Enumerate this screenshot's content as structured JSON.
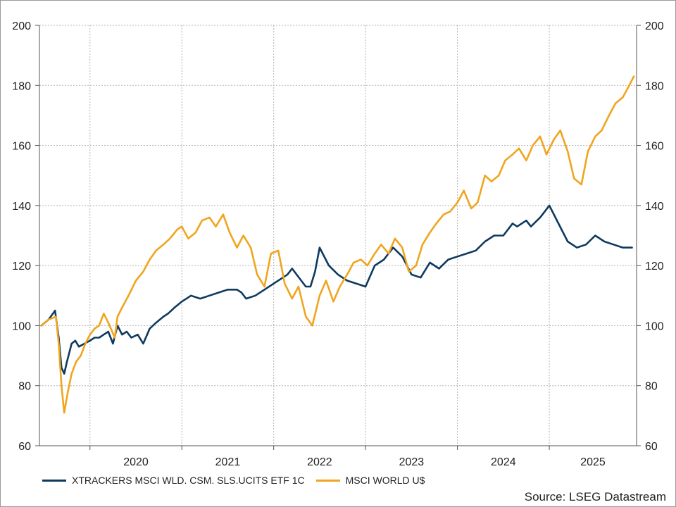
{
  "chart_data": {
    "type": "line",
    "y_ticks": [
      60,
      80,
      100,
      120,
      140,
      160,
      180,
      200
    ],
    "ylim": [
      60,
      200
    ],
    "x_year_labels": [
      "2020",
      "2021",
      "2022",
      "2023",
      "2024",
      "2025"
    ],
    "xlim": [
      2019.45,
      2025.95
    ],
    "grid": true,
    "legend_position": "bottom-left",
    "series": [
      {
        "name": "XTRACKERS MSCI WLD. CSM. SLS.UCITS ETF 1C",
        "color": "#0e3a5f",
        "x": [
          2019.47,
          2019.55,
          2019.62,
          2019.66,
          2019.69,
          2019.72,
          2019.75,
          2019.8,
          2019.84,
          2019.88,
          2019.94,
          2020.0,
          2020.05,
          2020.1,
          2020.15,
          2020.2,
          2020.25,
          2020.3,
          2020.35,
          2020.4,
          2020.45,
          2020.52,
          2020.58,
          2020.65,
          2020.72,
          2020.8,
          2020.85,
          2020.92,
          2021.0,
          2021.1,
          2021.2,
          2021.3,
          2021.4,
          2021.5,
          2021.6,
          2021.65,
          2021.7,
          2021.8,
          2021.9,
          2022.0,
          2022.1,
          2022.15,
          2022.2,
          2022.3,
          2022.35,
          2022.4,
          2022.45,
          2022.5,
          2022.6,
          2022.7,
          2022.8,
          2022.9,
          2023.0,
          2023.1,
          2023.2,
          2023.3,
          2023.4,
          2023.5,
          2023.6,
          2023.7,
          2023.8,
          2023.9,
          2024.0,
          2024.1,
          2024.2,
          2024.3,
          2024.4,
          2024.5,
          2024.6,
          2024.65,
          2024.7,
          2024.75,
          2024.8,
          2024.9,
          2025.0,
          2025.1,
          2025.2,
          2025.3,
          2025.4,
          2025.5,
          2025.6,
          2025.7,
          2025.8,
          2025.9
        ],
        "values": [
          100,
          102,
          105,
          96,
          86,
          84,
          88,
          94,
          95,
          93,
          94,
          95,
          96,
          96,
          97,
          98,
          94,
          100,
          97,
          98,
          96,
          97,
          94,
          99,
          101,
          103,
          104,
          106,
          108,
          110,
          109,
          110,
          111,
          112,
          112,
          111,
          109,
          110,
          112,
          114,
          116,
          117,
          119,
          115,
          113,
          113,
          118,
          126,
          120,
          117,
          115,
          114,
          113,
          120,
          122,
          126,
          123,
          117,
          116,
          121,
          119,
          122,
          123,
          124,
          125,
          128,
          130,
          130,
          134,
          133,
          134,
          135,
          133,
          136,
          140,
          134,
          128,
          126,
          127,
          130,
          128,
          127,
          126,
          126
        ],
        "x2": [
          2019.47,
          2019.55,
          2019.63,
          2019.66,
          2019.69,
          2019.72,
          2019.76,
          2019.8,
          2019.85,
          2019.9,
          2019.95,
          2020.0,
          2020.05,
          2020.1,
          2020.15,
          2020.2,
          2020.27,
          2020.3,
          2020.35,
          2020.42,
          2020.5,
          2020.58,
          2020.65,
          2020.72,
          2020.8,
          2020.87,
          2020.95,
          2021.0,
          2021.07,
          2021.15,
          2021.22,
          2021.3,
          2021.37,
          2021.45,
          2021.52,
          2021.6,
          2021.67,
          2021.75,
          2021.82,
          2021.9,
          2021.97,
          2022.05,
          2022.12,
          2022.2,
          2022.27,
          2022.35,
          2022.42,
          2022.5,
          2022.57,
          2022.65,
          2022.72,
          2022.8,
          2022.87,
          2022.95,
          2023.02,
          2023.1,
          2023.17,
          2023.25,
          2023.32,
          2023.4,
          2023.47,
          2023.55,
          2023.62,
          2023.7,
          2023.77,
          2023.85,
          2023.92,
          2024.0,
          2024.07,
          2024.15,
          2024.22,
          2024.3,
          2024.37,
          2024.45,
          2024.52,
          2024.6,
          2024.67,
          2024.75,
          2024.82,
          2024.9,
          2024.97,
          2025.05,
          2025.12,
          2025.2,
          2025.27,
          2025.35,
          2025.42,
          2025.5,
          2025.57,
          2025.65,
          2025.72,
          2025.8,
          2025.87,
          2025.92
        ]
      },
      {
        "name": "MSCI WORLD U$",
        "color": "#f0a51e",
        "x": [
          2019.47,
          2019.55,
          2019.63,
          2019.66,
          2019.69,
          2019.72,
          2019.76,
          2019.8,
          2019.85,
          2019.9,
          2019.95,
          2020.0,
          2020.05,
          2020.1,
          2020.15,
          2020.2,
          2020.27,
          2020.3,
          2020.35,
          2020.42,
          2020.5,
          2020.58,
          2020.65,
          2020.72,
          2020.8,
          2020.87,
          2020.95,
          2021.0,
          2021.07,
          2021.15,
          2021.22,
          2021.3,
          2021.37,
          2021.45,
          2021.52,
          2021.6,
          2021.67,
          2021.75,
          2021.82,
          2021.9,
          2021.97,
          2022.05,
          2022.12,
          2022.2,
          2022.27,
          2022.35,
          2022.42,
          2022.5,
          2022.57,
          2022.65,
          2022.72,
          2022.8,
          2022.87,
          2022.95,
          2023.02,
          2023.1,
          2023.17,
          2023.25,
          2023.32,
          2023.4,
          2023.47,
          2023.55,
          2023.62,
          2023.7,
          2023.77,
          2023.85,
          2023.92,
          2024.0,
          2024.07,
          2024.15,
          2024.22,
          2024.3,
          2024.37,
          2024.45,
          2024.52,
          2024.6,
          2024.67,
          2024.75,
          2024.82,
          2024.9,
          2024.97,
          2025.05,
          2025.12,
          2025.2,
          2025.27,
          2025.35,
          2025.42,
          2025.5,
          2025.57,
          2025.65,
          2025.72,
          2025.8,
          2025.87,
          2025.92
        ],
        "values": [
          100,
          102,
          103,
          94,
          80,
          71,
          78,
          84,
          88,
          90,
          94,
          97,
          99,
          100,
          104,
          101,
          96,
          103,
          106,
          110,
          115,
          118,
          122,
          125,
          127,
          129,
          132,
          133,
          129,
          131,
          135,
          136,
          133,
          137,
          131,
          126,
          130,
          126,
          117,
          113,
          124,
          125,
          114,
          109,
          113,
          103,
          100,
          110,
          115,
          108,
          113,
          117,
          121,
          122,
          120,
          124,
          127,
          124,
          129,
          126,
          118,
          120,
          127,
          131,
          134,
          137,
          138,
          141,
          145,
          139,
          141,
          150,
          148,
          150,
          155,
          157,
          159,
          155,
          160,
          163,
          157,
          162,
          165,
          158,
          149,
          147,
          158,
          163,
          165,
          170,
          174,
          176,
          180,
          183
        ]
      }
    ]
  },
  "legend": {
    "items": [
      {
        "label": "XTRACKERS MSCI WLD. CSM. SLS.UCITS ETF 1C",
        "color": "#0e3a5f"
      },
      {
        "label": "MSCI WORLD U$",
        "color": "#f0a51e"
      }
    ]
  },
  "source": "Source: LSEG Datastream"
}
